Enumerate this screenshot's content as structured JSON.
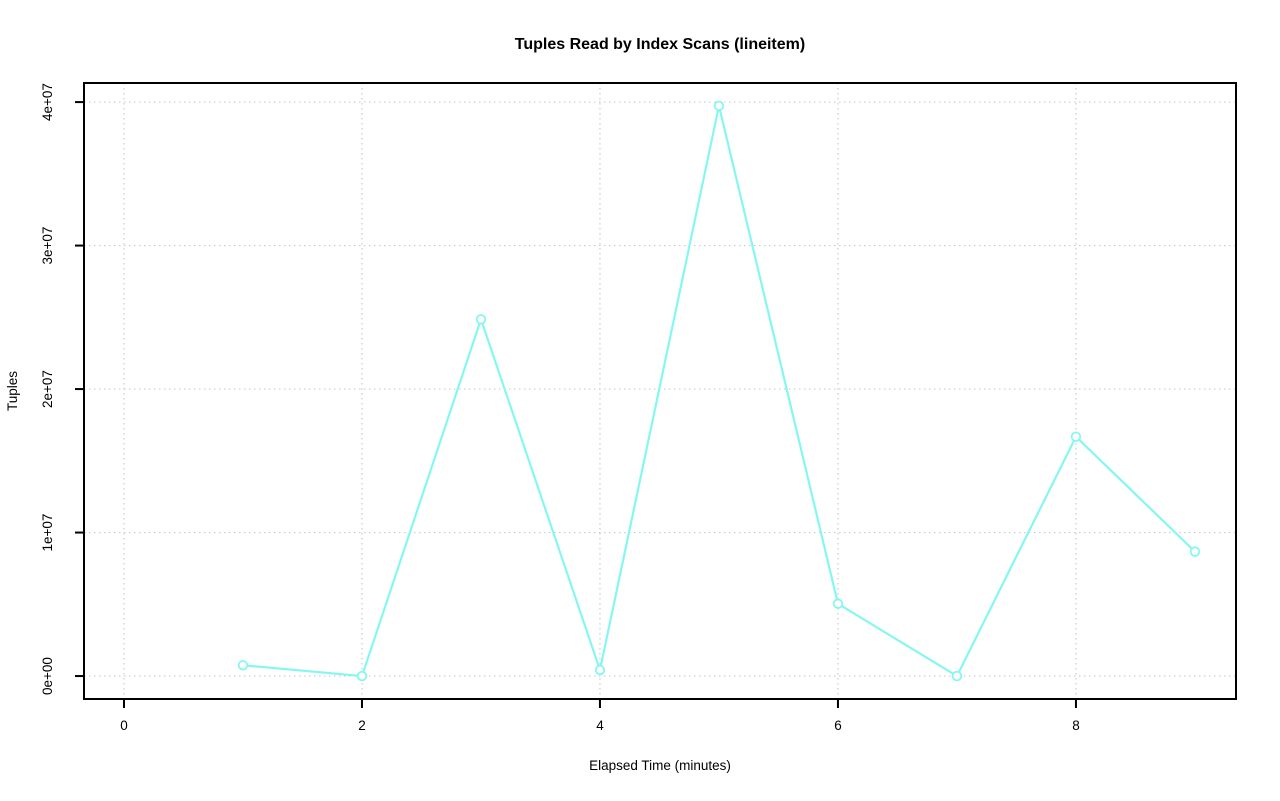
{
  "chart_data": {
    "type": "line",
    "title": "Tuples Read by Index Scans (lineitem)",
    "xlabel": "Elapsed Time (minutes)",
    "ylabel": "Tuples",
    "x": [
      1,
      2,
      3,
      4,
      5,
      6,
      7,
      8,
      9
    ],
    "y": [
      750000,
      0,
      24860000,
      420000,
      39740000,
      5040000,
      0,
      16680000,
      8670000
    ],
    "x_ticks": {
      "values": [
        0,
        2,
        4,
        6,
        8
      ],
      "labels": [
        "0",
        "2",
        "4",
        "6",
        "8"
      ]
    },
    "y_ticks": {
      "values": [
        0,
        10000000,
        20000000,
        30000000,
        40000000
      ],
      "labels": [
        "0e+00",
        "1e+07",
        "2e+07",
        "3e+07",
        "4e+07"
      ]
    },
    "xlim": [
      -0.336,
      9.345
    ],
    "ylim": [
      -1600000,
      41330000
    ],
    "grid": true,
    "grid_style": "dotted",
    "legend_position": "none",
    "marker": "open-circle",
    "colors": {
      "line": "#86f7f0",
      "marker_stroke": "#86f7f0",
      "marker_fill": "#ffffff",
      "axis": "#000000",
      "grid": "#cbcbcb",
      "background": "#ffffff",
      "title_text": "#000000"
    }
  }
}
